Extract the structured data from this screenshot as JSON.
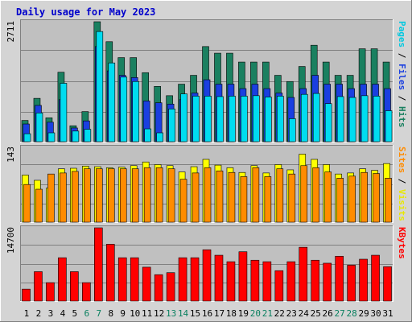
{
  "chart_data": [
    {
      "panel": "hits-files-pages",
      "type": "bar",
      "title": "Daily usage for May 2023",
      "ymax_label": "2711",
      "ymax": 2711,
      "right_label": {
        "parts": [
          "Pages",
          " / ",
          "Files",
          " / ",
          "Hits"
        ]
      },
      "categories": [
        "1",
        "2",
        "3",
        "4",
        "5",
        "6",
        "7",
        "8",
        "9",
        "10",
        "11",
        "12",
        "13",
        "14",
        "15",
        "16",
        "17",
        "18",
        "19",
        "20",
        "21",
        "22",
        "23",
        "24",
        "25",
        "26",
        "27",
        "28",
        "29",
        "30",
        "31"
      ],
      "weekend_days": [
        6,
        7,
        13,
        14,
        20,
        21,
        27,
        28
      ],
      "series": [
        {
          "name": "Hits",
          "values": [
            480,
            980,
            540,
            1570,
            360,
            680,
            2711,
            2260,
            1900,
            1900,
            1560,
            1250,
            1040,
            1300,
            1500,
            2150,
            2000,
            2000,
            1800,
            1800,
            1800,
            1500,
            1360,
            1700,
            2180,
            1800,
            1500,
            1500,
            2100,
            2100,
            1800
          ]
        },
        {
          "name": "Files",
          "values": [
            400,
            820,
            440,
            950,
            310,
            470,
            2150,
            1600,
            1500,
            1450,
            920,
            880,
            850,
            950,
            1100,
            1400,
            1300,
            1300,
            1200,
            1300,
            1200,
            1100,
            1000,
            1200,
            1500,
            1300,
            1300,
            1200,
            1300,
            1300,
            1200
          ]
        },
        {
          "name": "Pages",
          "values": [
            180,
            650,
            200,
            1320,
            240,
            280,
            2490,
            1780,
            1460,
            1360,
            290,
            200,
            740,
            1080,
            1030,
            1030,
            1020,
            1030,
            1030,
            1040,
            1010,
            1030,
            520,
            1070,
            1090,
            860,
            1020,
            1000,
            1040,
            1030,
            700
          ]
        }
      ],
      "colors": {
        "Hits": "#1a8060",
        "Files": "#1a3fe0",
        "Pages": "#00dcf0"
      }
    },
    {
      "panel": "visits-sites",
      "type": "bar",
      "ymax_label": "143",
      "ymax": 143,
      "right_label": {
        "parts": [
          "Sites",
          " / ",
          "Visits"
        ]
      },
      "series": [
        {
          "name": "Visits",
          "values": [
            90,
            80,
            65,
            102,
            103,
            107,
            106,
            104,
            105,
            108,
            115,
            110,
            108,
            96,
            106,
            120,
            109,
            104,
            95,
            108,
            94,
            110,
            100,
            130,
            120,
            110,
            92,
            94,
            102,
            99,
            112
          ]
        },
        {
          "name": "Sites",
          "values": [
            72,
            63,
            92,
            94,
            97,
            102,
            102,
            102,
            102,
            102,
            104,
            104,
            102,
            82,
            94,
            104,
            98,
            95,
            87,
            104,
            87,
            102,
            92,
            108,
            104,
            96,
            84,
            88,
            95,
            93,
            84
          ]
        }
      ],
      "colors": {
        "Visits": "#ffff00",
        "Sites": "#ff8c00"
      }
    },
    {
      "panel": "kbytes",
      "type": "bar",
      "ymax_label": "14700",
      "ymax": 14700,
      "right_label": {
        "parts": [
          "KBytes"
        ]
      },
      "series": [
        {
          "name": "KBytes",
          "values": [
            2400,
            5900,
            3700,
            8700,
            5900,
            3700,
            14700,
            11400,
            8700,
            8700,
            6800,
            5300,
            5700,
            8700,
            8700,
            10300,
            9200,
            7900,
            9900,
            8200,
            7900,
            6100,
            7900,
            10800,
            8200,
            7600,
            9000,
            7200,
            8400,
            9200,
            6900
          ]
        }
      ],
      "colors": {
        "KBytes": "#ff0000"
      }
    }
  ],
  "colors": {
    "title": "#0000cc",
    "day_weekday": "#000000",
    "day_weekend": "#0a8060",
    "background": "#c8c8c8",
    "frame": "#d4d4d4"
  }
}
